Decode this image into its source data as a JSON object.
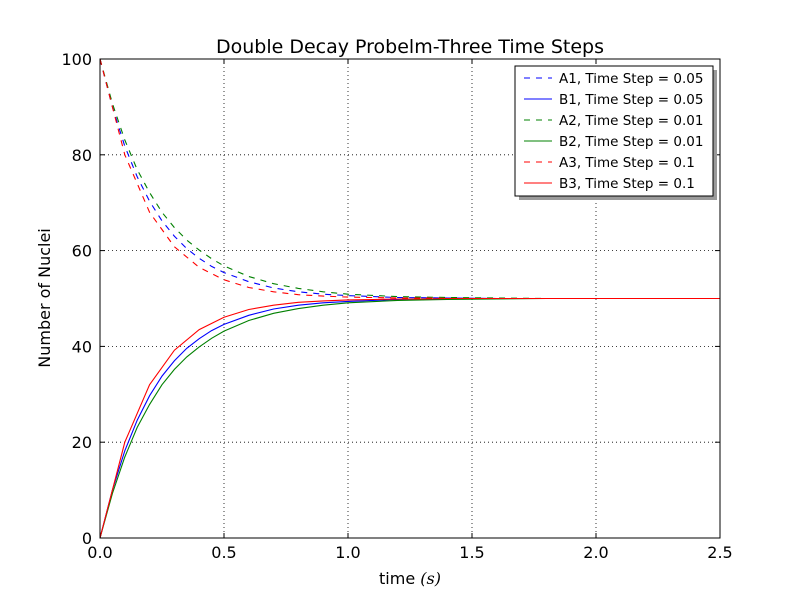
{
  "chart_data": {
    "type": "line",
    "title": "Double Decay Probelm-Three Time Steps",
    "xlabel": "time",
    "xlabel_unit": "(s)",
    "ylabel": "Number of Nuclei",
    "xlim": [
      0,
      2.5
    ],
    "ylim": [
      0,
      100
    ],
    "xticks": [
      "0.0",
      "0.5",
      "1.0",
      "1.5",
      "2.0",
      "2.5"
    ],
    "yticks": [
      "0",
      "20",
      "40",
      "60",
      "80",
      "100"
    ],
    "grid": true,
    "legend_position": "top-right",
    "series": [
      {
        "name": "A1, Time Step = 0.05",
        "color": "#0000ff",
        "dash": "dashed",
        "x": [
          0,
          0.05,
          0.1,
          0.15,
          0.2,
          0.25,
          0.3,
          0.35,
          0.4,
          0.45,
          0.5,
          0.6,
          0.7,
          0.8,
          0.9,
          1.0,
          1.2,
          1.4,
          1.6,
          1.8,
          2.0,
          2.2,
          2.5
        ],
        "y": [
          100,
          90,
          81.8,
          75.4,
          70.3,
          66.2,
          63.0,
          60.4,
          58.4,
          56.7,
          55.4,
          53.5,
          52.2,
          51.4,
          50.9,
          50.6,
          50.2,
          50.1,
          50.0,
          50.0,
          50.0,
          50.0,
          50.0
        ]
      },
      {
        "name": "B1, Time Step = 0.05",
        "color": "#0000ff",
        "dash": "solid",
        "x": [
          0,
          0.05,
          0.1,
          0.15,
          0.2,
          0.25,
          0.3,
          0.35,
          0.4,
          0.45,
          0.5,
          0.6,
          0.7,
          0.8,
          0.9,
          1.0,
          1.2,
          1.4,
          1.6,
          1.8,
          2.0,
          2.2,
          2.5
        ],
        "y": [
          0,
          10,
          18.2,
          24.6,
          29.7,
          33.8,
          37.0,
          39.6,
          41.6,
          43.3,
          44.6,
          46.5,
          47.8,
          48.6,
          49.1,
          49.4,
          49.8,
          49.9,
          50.0,
          50.0,
          50.0,
          50.0,
          50.0
        ]
      },
      {
        "name": "A2, Time Step = 0.01",
        "color": "#008000",
        "dash": "dashed",
        "x": [
          0,
          0.05,
          0.1,
          0.15,
          0.2,
          0.25,
          0.3,
          0.35,
          0.4,
          0.45,
          0.5,
          0.6,
          0.7,
          0.8,
          0.9,
          1.0,
          1.2,
          1.4,
          1.6,
          1.8,
          2.0,
          2.2,
          2.5
        ],
        "y": [
          100,
          90.7,
          83.1,
          76.9,
          72.1,
          68.0,
          64.8,
          62.2,
          60.1,
          58.3,
          56.8,
          54.6,
          53.1,
          52.1,
          51.4,
          50.9,
          50.4,
          50.2,
          50.1,
          50.0,
          50.0,
          50.0,
          50.0
        ]
      },
      {
        "name": "B2, Time Step = 0.01",
        "color": "#008000",
        "dash": "solid",
        "x": [
          0,
          0.05,
          0.1,
          0.15,
          0.2,
          0.25,
          0.3,
          0.35,
          0.4,
          0.45,
          0.5,
          0.6,
          0.7,
          0.8,
          0.9,
          1.0,
          1.2,
          1.4,
          1.6,
          1.8,
          2.0,
          2.2,
          2.5
        ],
        "y": [
          0,
          9.3,
          16.9,
          23.1,
          27.9,
          32.0,
          35.2,
          37.8,
          39.9,
          41.7,
          43.2,
          45.4,
          46.9,
          47.9,
          48.6,
          49.1,
          49.6,
          49.8,
          49.9,
          50.0,
          50.0,
          50.0,
          50.0
        ]
      },
      {
        "name": "A3, Time Step = 0.1",
        "color": "#ff0000",
        "dash": "dashed",
        "x": [
          0,
          0.1,
          0.2,
          0.3,
          0.4,
          0.5,
          0.6,
          0.7,
          0.8,
          0.9,
          1.0,
          1.1,
          1.2,
          1.3,
          1.4,
          1.5,
          1.6,
          1.8,
          2.0,
          2.2,
          2.5
        ],
        "y": [
          100,
          80.0,
          68.0,
          60.8,
          56.5,
          53.9,
          52.3,
          51.4,
          50.8,
          50.5,
          50.3,
          50.2,
          50.1,
          50.1,
          50.0,
          50.0,
          50.0,
          50.0,
          50.0,
          50.0,
          50.0
        ]
      },
      {
        "name": "B3, Time Step = 0.1",
        "color": "#ff0000",
        "dash": "solid",
        "x": [
          0,
          0.1,
          0.2,
          0.3,
          0.4,
          0.5,
          0.6,
          0.7,
          0.8,
          0.9,
          1.0,
          1.1,
          1.2,
          1.3,
          1.4,
          1.5,
          1.6,
          1.8,
          2.0,
          2.2,
          2.5
        ],
        "y": [
          0,
          20.0,
          32.0,
          39.2,
          43.5,
          46.1,
          47.7,
          48.6,
          49.2,
          49.5,
          49.7,
          49.8,
          49.9,
          49.9,
          50.0,
          50.0,
          50.0,
          50.0,
          50.0,
          50.0,
          50.0
        ]
      }
    ]
  }
}
